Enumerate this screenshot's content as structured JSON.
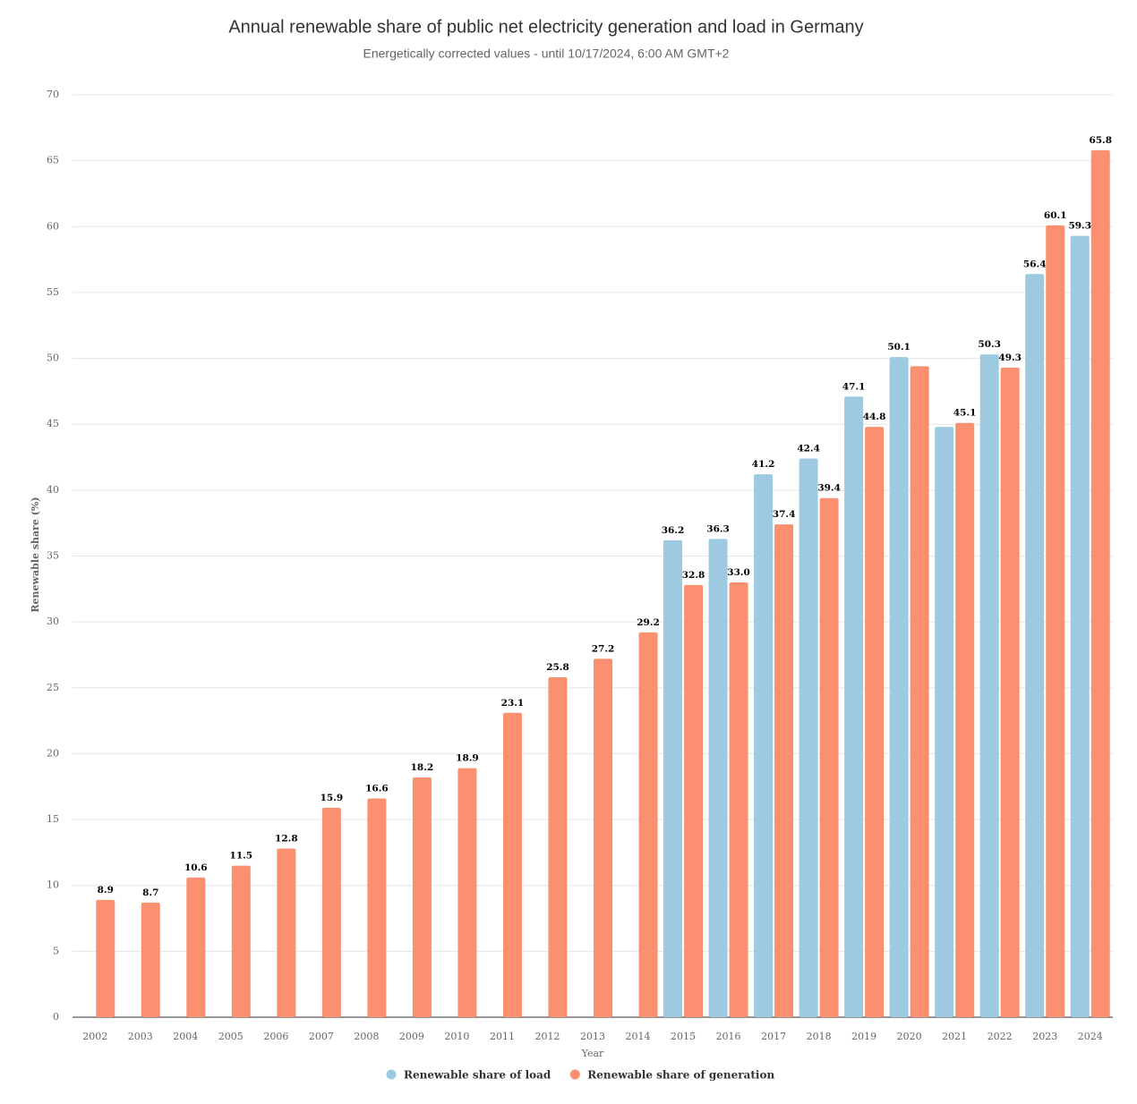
{
  "chart_data": {
    "type": "bar",
    "title": "Annual renewable share of public net electricity generation and load in Germany",
    "subtitle": "Energetically corrected values - until 10/17/2024, 6:00 AM GMT+2",
    "xlabel": "Year",
    "ylabel": "Renewable share (%)",
    "categories": [
      "2002",
      "2003",
      "2004",
      "2005",
      "2006",
      "2007",
      "2008",
      "2009",
      "2010",
      "2011",
      "2012",
      "2013",
      "2014",
      "2015",
      "2016",
      "2017",
      "2018",
      "2019",
      "2020",
      "2021",
      "2022",
      "2023",
      "2024"
    ],
    "series": [
      {
        "name": "Renewable share of load",
        "color": "#9ecae1",
        "values": [
          null,
          null,
          null,
          null,
          null,
          null,
          null,
          null,
          null,
          null,
          null,
          null,
          null,
          36.2,
          36.3,
          41.2,
          42.4,
          47.1,
          50.1,
          44.8,
          50.3,
          56.4,
          59.3
        ],
        "value_labels": [
          null,
          null,
          null,
          null,
          null,
          null,
          null,
          null,
          null,
          null,
          null,
          null,
          null,
          "36.2",
          "36.3",
          "41.2",
          "42.4",
          "47.1",
          "50.1",
          null,
          "50.3",
          "56.4",
          "59.3"
        ]
      },
      {
        "name": "Renewable share of generation",
        "color": "#fb9070",
        "values": [
          8.9,
          8.7,
          10.6,
          11.5,
          12.8,
          15.9,
          16.6,
          18.2,
          18.9,
          23.1,
          25.8,
          27.2,
          29.2,
          32.8,
          33.0,
          37.4,
          39.4,
          44.8,
          49.4,
          45.1,
          49.3,
          60.1,
          65.8
        ],
        "value_labels": [
          "8.9",
          "8.7",
          "10.6",
          "11.5",
          "12.8",
          "15.9",
          "16.6",
          "18.2",
          "18.9",
          "23.1",
          "25.8",
          "27.2",
          "29.2",
          "32.8",
          "33.0",
          "37.4",
          "39.4",
          "44.8",
          null,
          "45.1",
          "49.3",
          "60.1",
          "65.8"
        ]
      }
    ],
    "ylim": [
      0,
      70
    ],
    "yticks": [
      0,
      5,
      10,
      15,
      20,
      25,
      30,
      35,
      40,
      45,
      50,
      55,
      60,
      65,
      70
    ],
    "grid": true,
    "legend": "bottom"
  }
}
